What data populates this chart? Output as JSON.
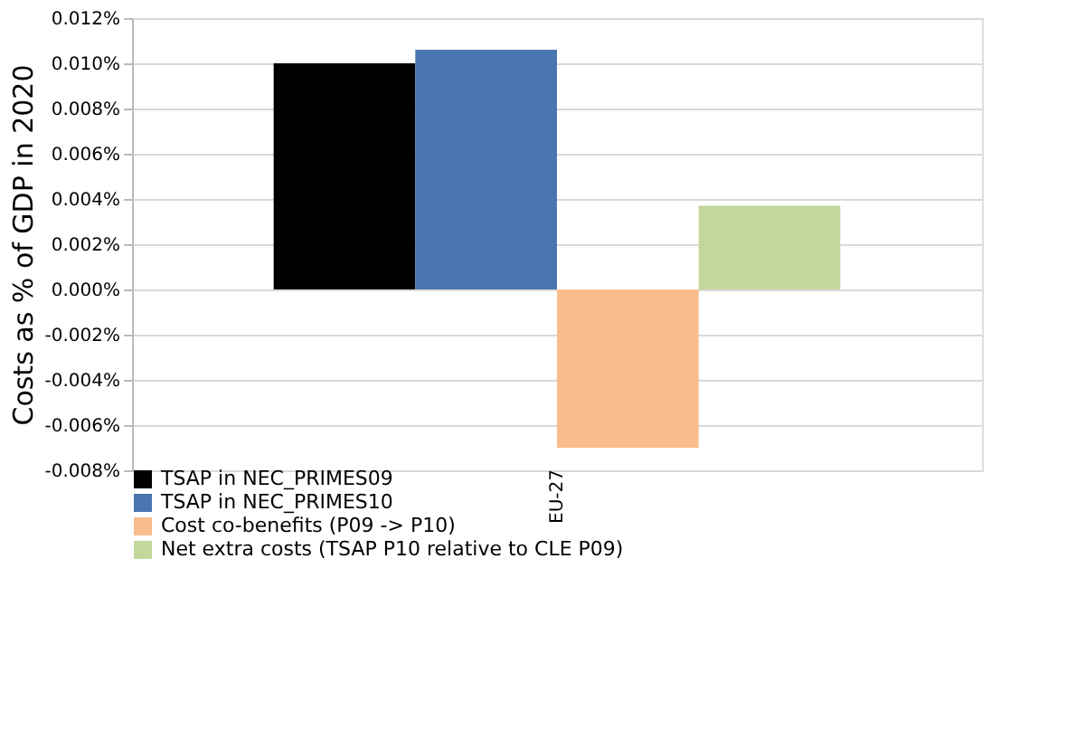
{
  "chart_data": {
    "type": "bar",
    "ylabel": "Costs as % of GDP in 2020",
    "categories": [
      "EU-27"
    ],
    "series": [
      {
        "name": "TSAP in NEC_PRIMES09",
        "color": "#000000",
        "values": [
          0.01
        ]
      },
      {
        "name": "TSAP in NEC_PRIMES10",
        "color": "#4a76b0",
        "values": [
          0.0106
        ]
      },
      {
        "name": "Cost co-benefits (P09 -> P10)",
        "color": "#f9bd8c",
        "values": [
          -0.007
        ]
      },
      {
        "name": "Net extra costs (TSAP P10 relative to CLE P09)",
        "color": "#c3d69b",
        "values": [
          0.0037
        ]
      }
    ],
    "ylim": [
      -0.008,
      0.012
    ],
    "yticks": [
      {
        "value": -0.008,
        "label": "-0.008%"
      },
      {
        "value": -0.006,
        "label": "-0.006%"
      },
      {
        "value": -0.004,
        "label": "-0.004%"
      },
      {
        "value": -0.002,
        "label": "-0.002%"
      },
      {
        "value": 0,
        "label": "0.000%"
      },
      {
        "value": 0.002,
        "label": "0.002%"
      },
      {
        "value": 0.004,
        "label": "0.004%"
      },
      {
        "value": 0.006,
        "label": "0.006%"
      },
      {
        "value": 0.008,
        "label": "0.008%"
      },
      {
        "value": 0.01,
        "label": "0.010%"
      },
      {
        "value": 0.012,
        "label": "0.012%"
      }
    ],
    "grid": "y",
    "legend": "bottom"
  }
}
